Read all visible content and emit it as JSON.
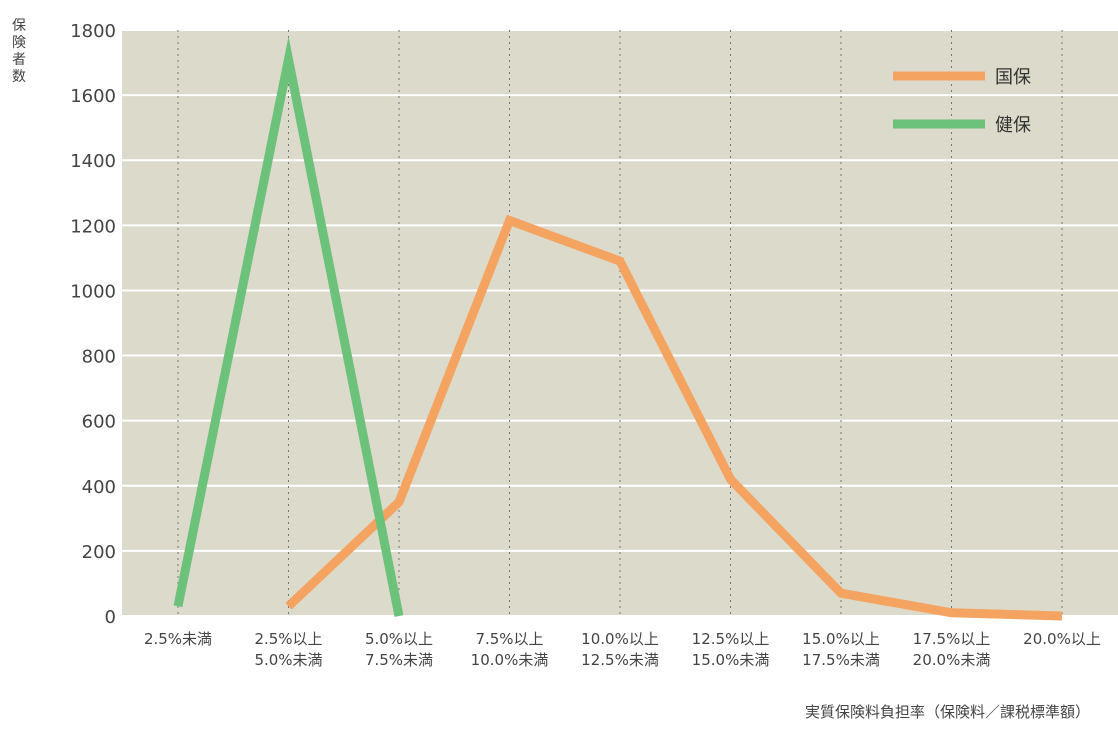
{
  "chart_data": {
    "type": "line",
    "ylabel": "保険者数",
    "xlabel": "実質保険料負担率（保険料／課税標準額）",
    "ylim": [
      0,
      1800
    ],
    "yticks": [
      0,
      200,
      400,
      600,
      800,
      1000,
      1200,
      1400,
      1600,
      1800
    ],
    "grid": true,
    "legend_position": "top-right",
    "categories": [
      [
        "2.5%未満"
      ],
      [
        "2.5%以上",
        "5.0%未満"
      ],
      [
        "5.0%以上",
        "7.5%未満"
      ],
      [
        "7.5%以上",
        "10.0%未満"
      ],
      [
        "10.0%以上",
        "12.5%未満"
      ],
      [
        "12.5%以上",
        "15.0%未満"
      ],
      [
        "15.0%以上",
        "17.5%未満"
      ],
      [
        "17.5%以上",
        "20.0%未満"
      ],
      [
        "20.0%以上"
      ]
    ],
    "series": [
      {
        "name": "国保",
        "color": "#F4A460",
        "values": [
          null,
          30,
          350,
          1215,
          1090,
          420,
          70,
          10,
          0
        ]
      },
      {
        "name": "健保",
        "color": "#6CC27A",
        "values": [
          30,
          1710,
          0,
          null,
          null,
          null,
          null,
          null,
          null
        ]
      }
    ]
  }
}
